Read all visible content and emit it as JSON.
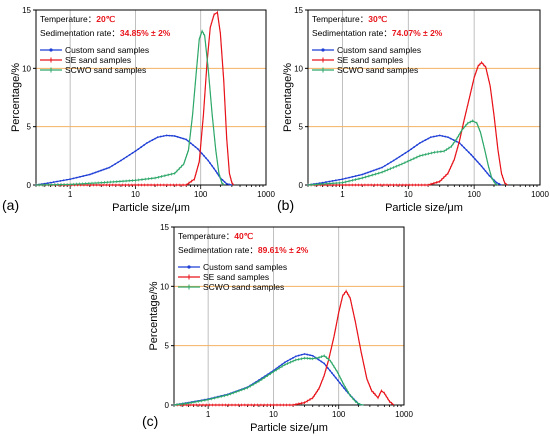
{
  "colors": {
    "custom": "#1f3fd6",
    "se": "#e8141b",
    "scwo": "#2fa86a",
    "ref_line": "#f2b262",
    "vgrid": "#b0b0b0",
    "annot_value": "#e8141b"
  },
  "chart_data": [
    {
      "type": "line",
      "panel_label": "(a)",
      "xlabel": "Particle size/μm",
      "ylabel": "Percentage/%",
      "xscale": "log",
      "xlim": [
        0.3,
        1000
      ],
      "ylim": [
        0,
        15
      ],
      "xticks": [
        1,
        10,
        100,
        1000
      ],
      "xtick_labels": [
        "1",
        "10",
        "100",
        "1000"
      ],
      "yticks": [
        0,
        5,
        10,
        15
      ],
      "ytick_labels": [
        "0",
        "5",
        "10",
        "15"
      ],
      "reference_lines": [
        5,
        10
      ],
      "annotations": {
        "temperature_label": "Temperature：",
        "temperature_value": "20℃",
        "rate_label": "Sedimentation rate：",
        "rate_value": "34.85% ± 2%"
      },
      "legend": [
        "Custom sand samples",
        "SE sand samples",
        "SCWO sand samples"
      ],
      "legend_placement": "upper-left",
      "series": [
        {
          "name": "Custom sand samples",
          "color_key": "custom",
          "marker": "dot",
          "points": [
            [
              0.3,
              0.0
            ],
            [
              0.5,
              0.2
            ],
            [
              1,
              0.5
            ],
            [
              2,
              0.9
            ],
            [
              4,
              1.5
            ],
            [
              6,
              2.1
            ],
            [
              10,
              2.9
            ],
            [
              15,
              3.6
            ],
            [
              22,
              4.1
            ],
            [
              30,
              4.25
            ],
            [
              40,
              4.2
            ],
            [
              60,
              3.9
            ],
            [
              90,
              3.1
            ],
            [
              130,
              2.1
            ],
            [
              170,
              1.2
            ],
            [
              200,
              0.6
            ],
            [
              250,
              0.1
            ],
            [
              300,
              0.0
            ]
          ]
        },
        {
          "name": "SE sand samples",
          "color_key": "se",
          "marker": "tick",
          "points": [
            [
              0.3,
              0.0
            ],
            [
              60,
              0.0
            ],
            [
              80,
              0.5
            ],
            [
              95,
              2.0
            ],
            [
              110,
              6.0
            ],
            [
              125,
              10.5
            ],
            [
              140,
              13.5
            ],
            [
              160,
              14.6
            ],
            [
              180,
              14.8
            ],
            [
              200,
              13.0
            ],
            [
              225,
              9.0
            ],
            [
              250,
              4.0
            ],
            [
              275,
              1.0
            ],
            [
              300,
              0.2
            ],
            [
              320,
              0.0
            ]
          ]
        },
        {
          "name": "SCWO sand samples",
          "color_key": "scwo",
          "marker": "tick",
          "points": [
            [
              0.3,
              0.0
            ],
            [
              1,
              0.05
            ],
            [
              3,
              0.2
            ],
            [
              10,
              0.4
            ],
            [
              20,
              0.6
            ],
            [
              40,
              1.0
            ],
            [
              55,
              1.8
            ],
            [
              65,
              3.0
            ],
            [
              75,
              6.0
            ],
            [
              85,
              9.5
            ],
            [
              95,
              12.5
            ],
            [
              105,
              13.2
            ],
            [
              115,
              12.8
            ],
            [
              130,
              10.0
            ],
            [
              150,
              6.0
            ],
            [
              170,
              3.0
            ],
            [
              190,
              1.0
            ],
            [
              210,
              0.2
            ],
            [
              230,
              0.0
            ]
          ]
        }
      ]
    },
    {
      "type": "line",
      "panel_label": "(b)",
      "xlabel": "Particle size/μm",
      "ylabel": "Percentage/%",
      "xscale": "log",
      "xlim": [
        0.3,
        1000
      ],
      "ylim": [
        0,
        15
      ],
      "xticks": [
        1,
        10,
        100,
        1000
      ],
      "xtick_labels": [
        "1",
        "10",
        "100",
        "1000"
      ],
      "yticks": [
        0,
        5,
        10,
        15
      ],
      "ytick_labels": [
        "0",
        "5",
        "10",
        "15"
      ],
      "reference_lines": [
        5,
        10
      ],
      "annotations": {
        "temperature_label": "Temperature：",
        "temperature_value": "30℃",
        "rate_label": "Sedimentation rate：",
        "rate_value": "74.07% ± 2%"
      },
      "legend": [
        "Custom sand samples",
        "SE sand samples",
        "SCWO sand samples"
      ],
      "legend_placement": "upper-left",
      "series": [
        {
          "name": "Custom sand samples",
          "color_key": "custom",
          "marker": "dot",
          "points": [
            [
              0.3,
              0.0
            ],
            [
              0.5,
              0.2
            ],
            [
              1,
              0.5
            ],
            [
              2,
              0.9
            ],
            [
              4,
              1.5
            ],
            [
              6,
              2.1
            ],
            [
              10,
              2.9
            ],
            [
              15,
              3.6
            ],
            [
              22,
              4.1
            ],
            [
              30,
              4.25
            ],
            [
              40,
              4.1
            ],
            [
              60,
              3.6
            ],
            [
              90,
              2.6
            ],
            [
              130,
              1.6
            ],
            [
              170,
              0.8
            ],
            [
              220,
              0.2
            ],
            [
              260,
              0.0
            ]
          ]
        },
        {
          "name": "SE sand samples",
          "color_key": "se",
          "marker": "tick",
          "points": [
            [
              0.3,
              0.0
            ],
            [
              20,
              0.0
            ],
            [
              30,
              0.3
            ],
            [
              40,
              1.0
            ],
            [
              50,
              2.2
            ],
            [
              60,
              3.8
            ],
            [
              70,
              5.5
            ],
            [
              85,
              7.5
            ],
            [
              100,
              9.2
            ],
            [
              115,
              10.2
            ],
            [
              130,
              10.5
            ],
            [
              150,
              10.1
            ],
            [
              175,
              8.5
            ],
            [
              200,
              6.0
            ],
            [
              230,
              3.0
            ],
            [
              260,
              1.0
            ],
            [
              290,
              0.2
            ],
            [
              320,
              0.0
            ]
          ]
        },
        {
          "name": "SCWO sand samples",
          "color_key": "scwo",
          "marker": "tick",
          "points": [
            [
              0.3,
              0.0
            ],
            [
              1,
              0.2
            ],
            [
              2,
              0.6
            ],
            [
              4,
              1.1
            ],
            [
              8,
              1.8
            ],
            [
              15,
              2.5
            ],
            [
              25,
              2.8
            ],
            [
              35,
              2.9
            ],
            [
              45,
              3.3
            ],
            [
              55,
              4.0
            ],
            [
              65,
              4.7
            ],
            [
              80,
              5.3
            ],
            [
              95,
              5.5
            ],
            [
              110,
              5.3
            ],
            [
              125,
              4.5
            ],
            [
              145,
              3.0
            ],
            [
              165,
              1.6
            ],
            [
              185,
              0.6
            ],
            [
              210,
              0.1
            ],
            [
              230,
              0.0
            ]
          ]
        }
      ]
    },
    {
      "type": "line",
      "panel_label": "(c)",
      "xlabel": "Particle size/μm",
      "ylabel": "Percentage/%",
      "xscale": "log",
      "xlim": [
        0.3,
        1000
      ],
      "ylim": [
        0,
        15
      ],
      "xticks": [
        1,
        10,
        100,
        1000
      ],
      "xtick_labels": [
        "1",
        "10",
        "100",
        "1000"
      ],
      "yticks": [
        0,
        5,
        10,
        15
      ],
      "ytick_labels": [
        "0",
        "5",
        "10",
        "15"
      ],
      "reference_lines": [
        5,
        10
      ],
      "annotations": {
        "temperature_label": "Temperature：",
        "temperature_value": "40℃",
        "rate_label": "Sedimentation rate：",
        "rate_value": "89.61% ± 2%"
      },
      "legend": [
        "Custom sand samples",
        "SE sand samples",
        "SCWO sand samples"
      ],
      "legend_placement": "upper-left",
      "series": [
        {
          "name": "Custom sand samples",
          "color_key": "custom",
          "marker": "dot",
          "points": [
            [
              0.3,
              0.0
            ],
            [
              0.5,
              0.2
            ],
            [
              1,
              0.5
            ],
            [
              2,
              0.9
            ],
            [
              4,
              1.5
            ],
            [
              6,
              2.1
            ],
            [
              10,
              2.9
            ],
            [
              15,
              3.6
            ],
            [
              22,
              4.1
            ],
            [
              30,
              4.3
            ],
            [
              40,
              4.15
            ],
            [
              60,
              3.5
            ],
            [
              90,
              2.3
            ],
            [
              130,
              1.2
            ],
            [
              170,
              0.5
            ],
            [
              200,
              0.1
            ],
            [
              230,
              0.0
            ]
          ]
        },
        {
          "name": "SE sand samples",
          "color_key": "se",
          "marker": "tick",
          "points": [
            [
              0.3,
              0.0
            ],
            [
              20,
              0.0
            ],
            [
              30,
              0.2
            ],
            [
              40,
              0.6
            ],
            [
              50,
              1.4
            ],
            [
              60,
              2.5
            ],
            [
              70,
              3.8
            ],
            [
              85,
              5.8
            ],
            [
              100,
              7.8
            ],
            [
              115,
              9.2
            ],
            [
              130,
              9.6
            ],
            [
              150,
              9.0
            ],
            [
              180,
              7.0
            ],
            [
              220,
              4.5
            ],
            [
              270,
              2.2
            ],
            [
              320,
              1.2
            ],
            [
              360,
              0.9
            ],
            [
              400,
              0.6
            ],
            [
              450,
              1.2
            ],
            [
              500,
              1.0
            ],
            [
              600,
              0.3
            ],
            [
              700,
              0.0
            ]
          ]
        },
        {
          "name": "SCWO sand samples",
          "color_key": "scwo",
          "marker": "tick",
          "points": [
            [
              0.3,
              0.0
            ],
            [
              0.5,
              0.15
            ],
            [
              1,
              0.45
            ],
            [
              2,
              0.85
            ],
            [
              4,
              1.45
            ],
            [
              6,
              2.0
            ],
            [
              10,
              2.8
            ],
            [
              15,
              3.4
            ],
            [
              22,
              3.8
            ],
            [
              30,
              3.95
            ],
            [
              40,
              3.9
            ],
            [
              50,
              4.0
            ],
            [
              60,
              4.15
            ],
            [
              75,
              3.7
            ],
            [
              95,
              2.8
            ],
            [
              120,
              1.7
            ],
            [
              150,
              0.8
            ],
            [
              180,
              0.3
            ],
            [
              210,
              0.05
            ],
            [
              240,
              0.0
            ]
          ]
        }
      ]
    }
  ]
}
